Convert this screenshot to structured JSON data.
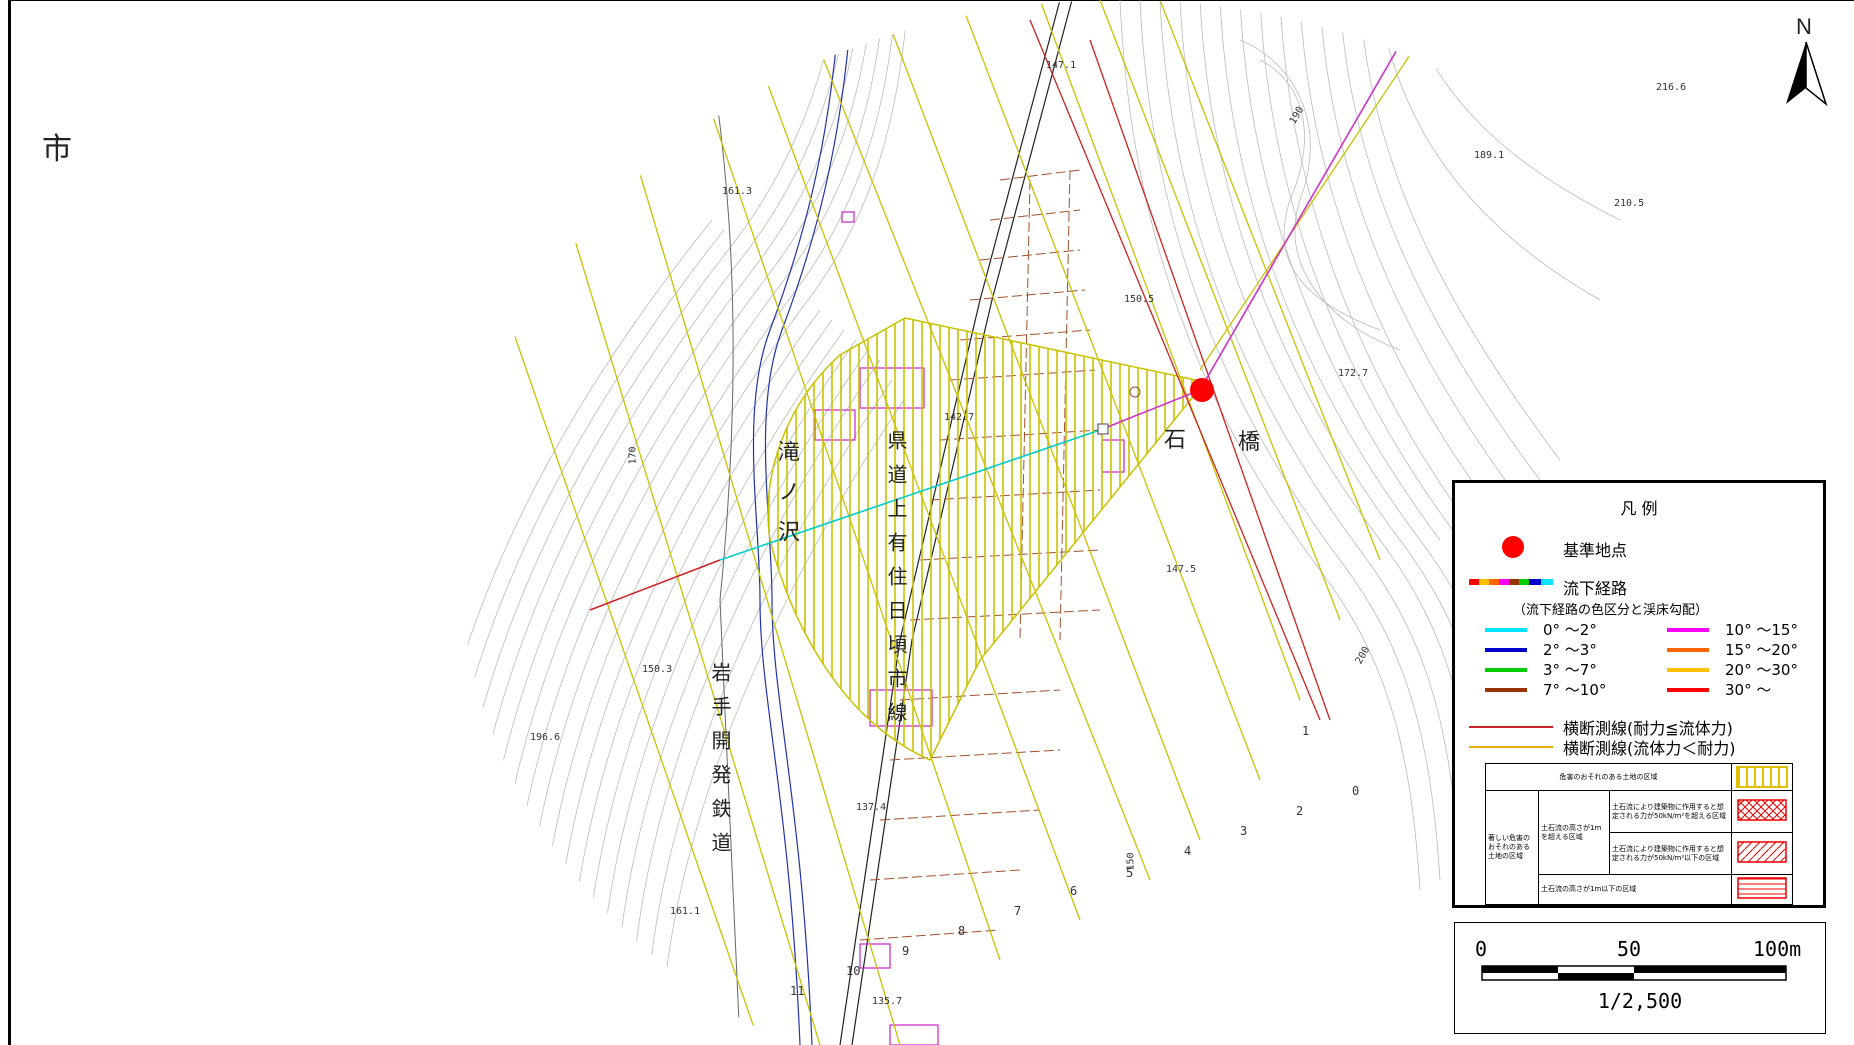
{
  "map": {
    "north_label": "N",
    "city_label": "市",
    "place_labels": {
      "ishibashi_1": "石",
      "ishibashi_2": "橋",
      "takinosawa": "滝ノ沢",
      "kendo": "県道上有住日頃市線",
      "railway": "岩手開発鉄道"
    },
    "spot_heights": {
      "a": "147.1",
      "b": "161.3",
      "c": "216.6",
      "d": "189.1",
      "e": "210.5",
      "f": "150.5",
      "g": "172.7",
      "h": "170",
      "i": "147.5",
      "j": "150.3",
      "k": "196.6",
      "l": "137.4",
      "m": "161.1",
      "n": "135.7",
      "o": "190",
      "p": "200",
      "q": "150",
      "r": "142.7"
    },
    "section_numbers": [
      "0",
      "1",
      "2",
      "3",
      "4",
      "5",
      "6",
      "7",
      "8",
      "9",
      "10",
      "11"
    ]
  },
  "legend": {
    "title": "凡 例",
    "reference_point": "基準地点",
    "flow_path": "流下経路",
    "flow_path_note": "（流下経路の色区分と渓床勾配）",
    "slopes": [
      {
        "label": "0°  ～2°",
        "color": "#00e5ff"
      },
      {
        "label": "2°  ～3°",
        "color": "#0000cc"
      },
      {
        "label": "3°  ～7°",
        "color": "#00cc00"
      },
      {
        "label": "7°  ～10°",
        "color": "#993300"
      },
      {
        "label": "10°  ～15°",
        "color": "#ff00ff"
      },
      {
        "label": "15°  ～20°",
        "color": "#ff6600"
      },
      {
        "label": "20°  ～30°",
        "color": "#ffc000"
      },
      {
        "label": "30°  ～",
        "color": "#ff0000"
      }
    ],
    "section_red": "横断測線(耐力≦流体力)",
    "section_yellow": "横断測線(流体力＜耐力)",
    "area_table": {
      "hazard_area": "危害のおそれのある土地の区域",
      "severe_area": "著しい危害のおそれのある土地の区域",
      "height_over": "土石流の高さが1mを超える区域",
      "force_over": "土石流により建築物に作用すると想定される力が50kN/m²を超える区域",
      "force_under": "土石流により建築物に作用すると想定される力が50kN/m²以下の区域",
      "height_under": "土石流の高さが1m以下の区域"
    }
  },
  "scale": {
    "zero": "0",
    "mid": "50",
    "max": "100m",
    "ratio": "1/2,500"
  },
  "colors": {
    "hazard_yellow": "#c9c200",
    "reference_red": "#ff0000",
    "section_red": "#cc2222",
    "building_magenta": "#cc33cc",
    "road_brown": "#a0522d",
    "river_blue": "#2233aa"
  }
}
